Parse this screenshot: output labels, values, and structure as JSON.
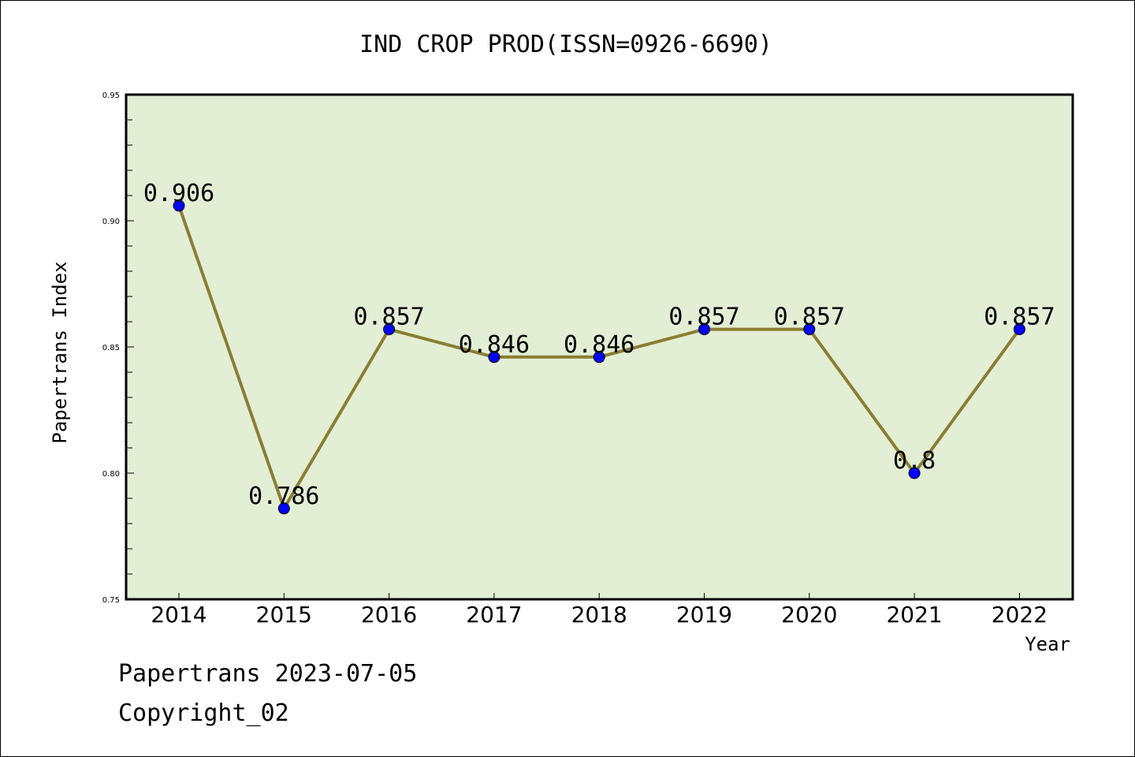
{
  "chart_data": {
    "type": "line",
    "title": "IND CROP PROD(ISSN=0926-6690)",
    "xlabel": "Year",
    "ylabel": "Papertrans Index",
    "categories": [
      "2014",
      "2015",
      "2016",
      "2017",
      "2018",
      "2019",
      "2020",
      "2021",
      "2022"
    ],
    "values": [
      0.906,
      0.786,
      0.857,
      0.846,
      0.846,
      0.857,
      0.857,
      0.8,
      0.857
    ],
    "data_labels": [
      "0.906",
      "0.786",
      "0.857",
      "0.846",
      "0.846",
      "0.857",
      "0.857",
      "0.8",
      "0.857"
    ],
    "ylim": [
      0.75,
      0.95
    ],
    "yticks": [
      "0.75",
      "0.80",
      "0.85",
      "0.90",
      "0.95"
    ],
    "grid": false,
    "line_color": "#8b7d32",
    "marker_color": "#0000ff",
    "plot_background": "#e2efd5"
  },
  "footer": {
    "line1": "Papertrans 2023-07-05",
    "line2": "Copyright_02"
  }
}
